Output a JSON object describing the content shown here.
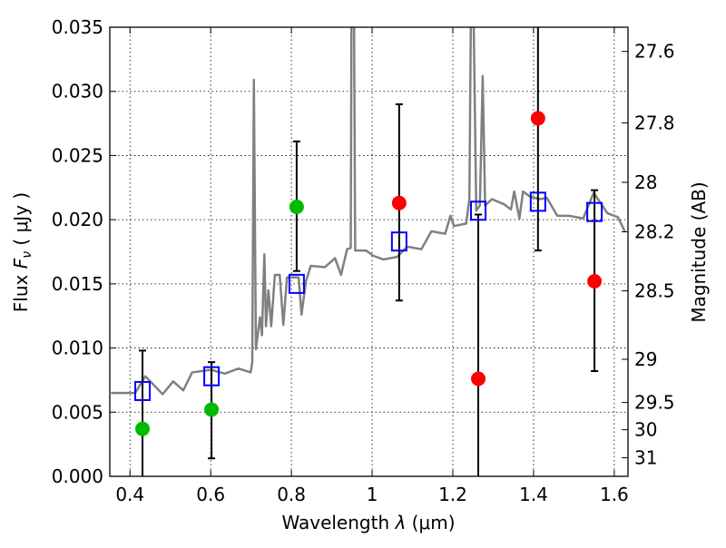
{
  "chart_data": {
    "type": "scatter",
    "title": "",
    "xlabel": "Wavelength  λ (μm)",
    "xlabel_parts": {
      "pre": "Wavelength  ",
      "sym": "λ",
      "post": " (μm)"
    },
    "ylabel": "Flux  Fν  ( μJy )",
    "ylabel_parts": {
      "pre": "Flux  ",
      "sym": "F",
      "sub": "ν",
      "post": "  ( μJy )"
    },
    "ylabel_right": "Magnitude (AB)",
    "xlim": [
      0.35,
      1.634
    ],
    "ylim": [
      0,
      0.035
    ],
    "grid": true,
    "x_ticks": [
      0.4,
      0.6,
      0.8,
      1.0,
      1.2,
      1.4,
      1.6
    ],
    "x_tick_labels": [
      "0.4",
      "0.6",
      "0.8",
      "1",
      "1.2",
      "1.4",
      "1.6"
    ],
    "y_ticks": [
      0,
      0.005,
      0.01,
      0.015,
      0.02,
      0.025,
      0.03,
      0.035
    ],
    "y_tick_labels": [
      "0.000",
      "0.005",
      "0.010",
      "0.015",
      "0.020",
      "0.025",
      "0.030",
      "0.035"
    ],
    "right_ticks": [
      27.6,
      27.8,
      28,
      28.2,
      28.5,
      29,
      29.5,
      30,
      31
    ],
    "right_tick_labels": [
      "27.6",
      "27.8",
      "28",
      "28.2",
      "28.5",
      "29",
      "29.5",
      "30",
      "31"
    ],
    "colors": {
      "spectrum": "#808080",
      "model": "#0000ff",
      "detected": "#00bb00",
      "upper": "#ff0000",
      "errorbar": "#000000"
    },
    "series": [
      {
        "name": "spectrum",
        "kind": "line",
        "points": [
          [
            0.353,
            0.0065
          ],
          [
            0.413,
            0.0065
          ],
          [
            0.438,
            0.0078
          ],
          [
            0.481,
            0.0064
          ],
          [
            0.507,
            0.0074
          ],
          [
            0.532,
            0.0067
          ],
          [
            0.554,
            0.0081
          ],
          [
            0.601,
            0.0083
          ],
          [
            0.635,
            0.008
          ],
          [
            0.669,
            0.0084
          ],
          [
            0.699,
            0.0081
          ],
          [
            0.703,
            0.0089
          ],
          [
            0.707,
            0.0309
          ],
          [
            0.712,
            0.0099
          ],
          [
            0.722,
            0.0124
          ],
          [
            0.727,
            0.011
          ],
          [
            0.733,
            0.0173
          ],
          [
            0.737,
            0.0117
          ],
          [
            0.743,
            0.0145
          ],
          [
            0.75,
            0.0117
          ],
          [
            0.759,
            0.0157
          ],
          [
            0.771,
            0.0157
          ],
          [
            0.78,
            0.0118
          ],
          [
            0.789,
            0.0155
          ],
          [
            0.818,
            0.0155
          ],
          [
            0.825,
            0.0126
          ],
          [
            0.836,
            0.0152
          ],
          [
            0.848,
            0.0164
          ],
          [
            0.883,
            0.0163
          ],
          [
            0.908,
            0.017
          ],
          [
            0.923,
            0.0157
          ],
          [
            0.938,
            0.0177
          ],
          [
            0.947,
            0.0178
          ],
          [
            0.949,
            0.037
          ],
          [
            0.955,
            0.037
          ],
          [
            0.958,
            0.0176
          ],
          [
            0.985,
            0.0176
          ],
          [
            1.002,
            0.0172
          ],
          [
            1.028,
            0.0169
          ],
          [
            1.062,
            0.0171
          ],
          [
            1.087,
            0.0179
          ],
          [
            1.122,
            0.0177
          ],
          [
            1.147,
            0.0191
          ],
          [
            1.181,
            0.0189
          ],
          [
            1.194,
            0.0203
          ],
          [
            1.203,
            0.0195
          ],
          [
            1.233,
            0.0197
          ],
          [
            1.241,
            0.0216
          ],
          [
            1.245,
            0.037
          ],
          [
            1.251,
            0.037
          ],
          [
            1.258,
            0.0207
          ],
          [
            1.267,
            0.0211
          ],
          [
            1.274,
            0.0312
          ],
          [
            1.28,
            0.0211
          ],
          [
            1.297,
            0.0216
          ],
          [
            1.327,
            0.0212
          ],
          [
            1.344,
            0.0208
          ],
          [
            1.352,
            0.0222
          ],
          [
            1.365,
            0.0201
          ],
          [
            1.374,
            0.0222
          ],
          [
            1.391,
            0.0218
          ],
          [
            1.416,
            0.0216
          ],
          [
            1.433,
            0.0217
          ],
          [
            1.459,
            0.0203
          ],
          [
            1.489,
            0.0203
          ],
          [
            1.523,
            0.0201
          ],
          [
            1.549,
            0.0221
          ],
          [
            1.583,
            0.0205
          ],
          [
            1.609,
            0.0202
          ],
          [
            1.626,
            0.0191
          ]
        ]
      },
      {
        "name": "model-photometry",
        "kind": "square",
        "points": [
          [
            0.431,
            0.00665
          ],
          [
            0.602,
            0.0078
          ],
          [
            0.813,
            0.015
          ],
          [
            1.067,
            0.0183
          ],
          [
            1.263,
            0.0207
          ],
          [
            1.411,
            0.0214
          ],
          [
            1.551,
            0.0206
          ]
        ]
      },
      {
        "name": "observed-green",
        "kind": "circle",
        "points": [
          [
            0.431,
            0.0037
          ],
          [
            0.602,
            0.0052
          ],
          [
            0.813,
            0.021
          ]
        ]
      },
      {
        "name": "observed-red",
        "kind": "circle",
        "points": [
          [
            1.067,
            0.0213
          ],
          [
            1.263,
            0.0076
          ],
          [
            1.411,
            0.0279
          ],
          [
            1.551,
            0.0152
          ]
        ]
      }
    ],
    "error_bars": [
      {
        "x": 0.431,
        "lo": -0.002,
        "hi": 0.0098
      },
      {
        "x": 0.602,
        "lo": 0.0014,
        "hi": 0.0089
      },
      {
        "x": 0.813,
        "lo": 0.016,
        "hi": 0.0261
      },
      {
        "x": 1.067,
        "lo": 0.0137,
        "hi": 0.029
      },
      {
        "x": 1.263,
        "lo": -0.002,
        "hi": 0.0204
      },
      {
        "x": 1.411,
        "lo": 0.0176,
        "hi": 0.037
      },
      {
        "x": 1.551,
        "lo": 0.0082,
        "hi": 0.0223
      }
    ]
  }
}
